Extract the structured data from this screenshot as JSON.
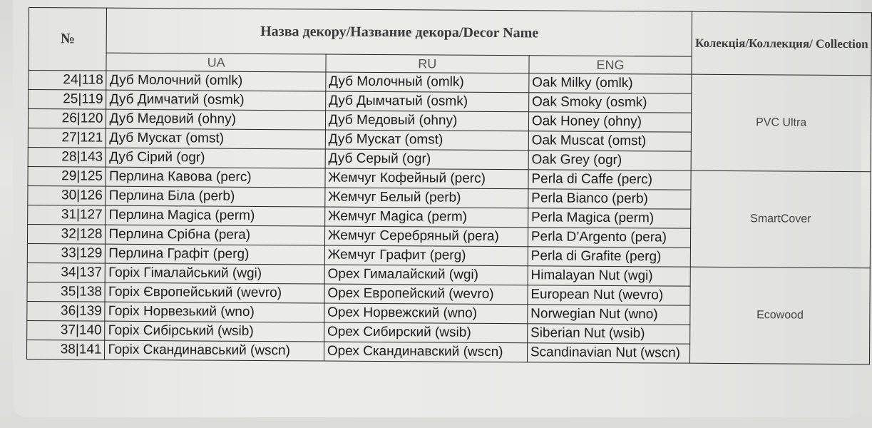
{
  "header": {
    "number": "№",
    "decor_name": "Назва декору/Название декора/Decor Name",
    "collection": "Колекція/Коллекция/ Collection",
    "ua": "UA",
    "ru": "RU",
    "eng": "ENG"
  },
  "rows": [
    {
      "num": "24|118",
      "ua": "Дуб Молочний (omlk)",
      "ru": "Дуб Молочный (omlk)",
      "eng": "Oak Milky (omlk)"
    },
    {
      "num": "25|119",
      "ua": "Дуб Димчатий (osmk)",
      "ru": "Дуб Дымчатый (osmk)",
      "eng": "Oak Smoky (osmk)"
    },
    {
      "num": "26|120",
      "ua": "Дуб Медовий (ohny)",
      "ru": "Дуб Медовый (ohny)",
      "eng": "Oak Honey (ohny)"
    },
    {
      "num": "27|121",
      "ua": "Дуб Мускат (omst)",
      "ru": "Дуб Мускат (omst)",
      "eng": "Oak Muscat (omst)"
    },
    {
      "num": "28|143",
      "ua": "Дуб Сірий (ogr)",
      "ru": "Дуб Серый (ogr)",
      "eng": "Oak Grey (ogr)"
    },
    {
      "num": "29|125",
      "ua": "Перлина Кавова (perc)",
      "ru": "Жемчуг Кофейный (perc)",
      "eng": "Perla di Caffe (perc)"
    },
    {
      "num": "30|126",
      "ua": "Перлина Біла (perb)",
      "ru": "Жемчуг Белый (perb)",
      "eng": "Perla Bianco (perb)"
    },
    {
      "num": "31|127",
      "ua": "Перлина Magica (perm)",
      "ru": "Жемчуг Magica (perm)",
      "eng": "Perla Magica (perm)"
    },
    {
      "num": "32|128",
      "ua": "Перлина Срібна (pera)",
      "ru": "Жемчуг Серебряный (pera)",
      "eng": "Perla D’Argento (pera)"
    },
    {
      "num": "33|129",
      "ua": "Перлина Графіт (perg)",
      "ru": "Жемчуг Графит (perg)",
      "eng": "Perla di Grafite (perg)"
    },
    {
      "num": "34|137",
      "ua": "Горіх Гімалайський (wgi)",
      "ru": "Орех Гималайский (wgi)",
      "eng": "Himalayan Nut (wgi)"
    },
    {
      "num": "35|138",
      "ua": "Горіх Європейський (wevro)",
      "ru": "Орех Европейский (wevro)",
      "eng": "European Nut (wevro)"
    },
    {
      "num": "36|139",
      "ua": "Горіх Норвезький (wno)",
      "ru": "Орех Норвежский (wno)",
      "eng": "Norwegian Nut (wno)"
    },
    {
      "num": "37|140",
      "ua": "Горіх Сибірський (wsib)",
      "ru": "Орех Сибирский (wsib)",
      "eng": "Siberian Nut (wsib)"
    },
    {
      "num": "38|141",
      "ua": "Горіх Скандинавський (wscn)",
      "ru": "Орех Скандинавский (wscn)",
      "eng": "Scandinavian Nut (wscn)"
    }
  ],
  "collections": [
    "PVC Ultra",
    "SmartCover",
    "Ecowood"
  ]
}
